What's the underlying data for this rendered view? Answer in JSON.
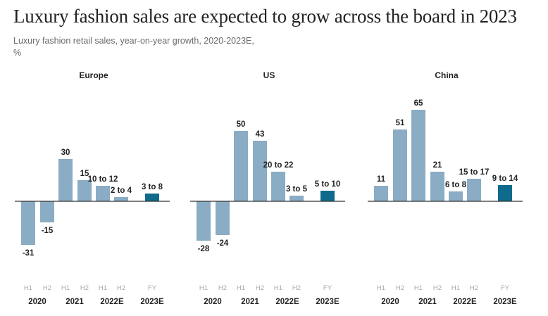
{
  "chart_data": {
    "type": "bar",
    "title": "Luxury fashion sales are expected to grow across the board in 2023",
    "subtitle": "Luxury fashion retail sales, year-on-year growth, 2020-2023E,",
    "unit": "%",
    "period_labels": [
      "H1",
      "H2",
      "H1",
      "H2",
      "H1",
      "H2",
      "FY"
    ],
    "year_labels": [
      "2020",
      "2021",
      "2022E",
      "2023E"
    ],
    "colors": {
      "historic": "#8aacc4",
      "forecast": "#0f6a8b"
    },
    "panels": [
      {
        "name": "Europe",
        "values": [
          {
            "label": "-31",
            "low": -31,
            "high": -31
          },
          {
            "label": "-15",
            "low": -15,
            "high": -15
          },
          {
            "label": "30",
            "low": 30,
            "high": 30
          },
          {
            "label": "15",
            "low": 15,
            "high": 15
          },
          {
            "label": "10 to 12",
            "low": 10,
            "high": 12
          },
          {
            "label": "2 to 4",
            "low": 2,
            "high": 4
          },
          {
            "label": "3 to 8",
            "low": 3,
            "high": 8
          }
        ]
      },
      {
        "name": "US",
        "values": [
          {
            "label": "-28",
            "low": -28,
            "high": -28
          },
          {
            "label": "-24",
            "low": -24,
            "high": -24
          },
          {
            "label": "50",
            "low": 50,
            "high": 50
          },
          {
            "label": "43",
            "low": 43,
            "high": 43
          },
          {
            "label": "20 to 22",
            "low": 20,
            "high": 22
          },
          {
            "label": "3 to 5",
            "low": 3,
            "high": 5
          },
          {
            "label": "5 to 10",
            "low": 5,
            "high": 10
          }
        ]
      },
      {
        "name": "China",
        "values": [
          {
            "label": "11",
            "low": 11,
            "high": 11
          },
          {
            "label": "51",
            "low": 51,
            "high": 51
          },
          {
            "label": "65",
            "low": 65,
            "high": 65
          },
          {
            "label": "21",
            "low": 21,
            "high": 21
          },
          {
            "label": "6 to 8",
            "low": 6,
            "high": 8
          },
          {
            "label": "15 to 17",
            "low": 15,
            "high": 17
          },
          {
            "label": "9 to 14",
            "low": 9,
            "high": 14
          }
        ]
      }
    ]
  }
}
